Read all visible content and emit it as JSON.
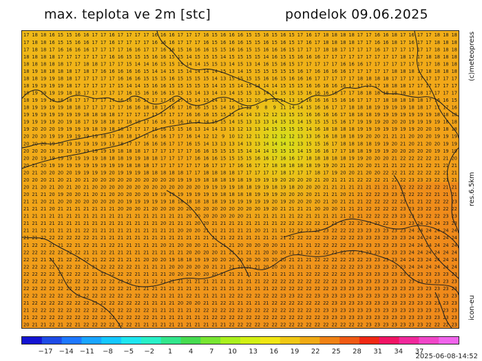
{
  "title": {
    "left": "max. teplota ve 2m [stc]",
    "right": "pondelok 09.06.2025"
  },
  "side_labels": {
    "top": "(c)meteopress",
    "middle": "res.6.5km",
    "bottom": "icon-eu"
  },
  "timestamp": "2025-06-08-14:52",
  "colorbar": {
    "tick_labels": [
      "−17",
      "−14",
      "−11",
      "−8",
      "−5",
      "−2",
      "1",
      "4",
      "7",
      "10",
      "13",
      "16",
      "19",
      "22",
      "25",
      "28",
      "31",
      "34",
      "37"
    ],
    "colors": [
      "#1414d2",
      "#1e4be6",
      "#1e78ff",
      "#19a5ff",
      "#14c8ff",
      "#1ee6f0",
      "#28f0c8",
      "#32e68c",
      "#46dc50",
      "#78e632",
      "#aaf01e",
      "#d2f014",
      "#f0e614",
      "#f0c814",
      "#f0aa14",
      "#f08214",
      "#f05a14",
      "#f02814",
      "#f01464",
      "#f0289b",
      "#f046c8",
      "#f064eb"
    ]
  },
  "map_grid": {
    "rows": [
      "17 18 18 16 15 15 16 16 17 17 16 17 17 17 17 16 16 16 17 17 17 16 15 16 16 16 15 15 16 15 16 15 17 16 17 18 18 18 18 17 17 16 16 18 17 16 17 17 18 18 18",
      "17 18 18 16 15 15 16 16 17 17 16 17 17 17 17 16 16 16 17 17 17 16 15 16 16 16 15 15 16 15 16 15 17 16 17 18 18 18 18 17 17 16 16 18 17 16 17 17 18 18 18",
      "17 18 18 17 16 16 16 16 17 17 17 17 16 16 17 17 16 16 15 16 16 16 15 15 16 16 15 15 16 16 16 15 17 17 17 18 18 17 17 17 17 16 17 17 17 17 17 17 18 18 18",
      "18 18 18 18 17 17 17 17 17 17 16 16 15 15 15 16 16 15 15 14 15 15 15 14 15 15 15 15 14 16 15 15 16 16 16 17 17 17 17 17 17 17 17 17 18 17 17 18 18 18 18",
      "18 18 18 18 18 17 17 18 18 17 17 17 15 14 14 16 15 15 15 14 14 15 15 13 14 15 13 14 16 15 16 15 17 17 17 17 17 16 16 16 17 17 17 17 17 17 17 17 18 18 18",
      "18 19 18 18 18 18 17 18 17 16 16 16 16 16 15 14 14 15 15 14 14 14 14 15 13 14 15 15 15 15 15 15 16 17 16 16 16 16 17 17 17 17 17 18 18 18 17 18 18 18 18",
      "18 18 19 19 18 18 17 17 17 17 17 16 16 16 15 15 15 16 15 15 15 15 14 13 15 15 15 15 16 16 15 16 16 16 17 17 17 17 17 18 18 18 18 17 17 17 17 17 17 17 17",
      "18 19 19 19 19 18 17 17 17 17 17 15 14 14 15 16 16 15 15 15 15 15 14 15 15 14 15 14 14 14 15 15 15 16 16 16 16 16 17 17 17 17 18 18 18 17 17 17 17 17 17",
      "18 19 19 19 19 18 18 17 17 17 17 17 16 15 16 16 16 15 15 15 14 13 14 13 14 15 15 13 14 14 15 15 15 16 16 16 16 17 17 18 18 18 18 18 18 18 18 17 17 17 17",
      "18 19 19 19 18 18 17 17 17 17 17 16 16 16 17 17 17 16 17 15 14 15 14 13 15 15 12 10 9 10 11 13 15 16 16 16 15 16 16 17 17 17 18 18 18 18 18 17 16 16 15",
      "18 19 19 19 19 18 18 17 17 17 17 17 16 16 18 18 17 16 17 16 16 15 15 14 16 15 13 9 8 9 11 14 14 15 16 16 17 17 18 18 18 19 19 19 19 18 18 17 17 17 16",
      "19 19 19 19 19 19 19 18 18 18 18 17 17 17 17 17 17 17 17 16 16 16 15 15 15 14 14 13 12 12 13 15 15 16 16 16 16 17 18 18 18 19 19 19 19 19 19 19 18 18 18",
      "19 19 19 19 20 19 18 17 19 18 18 17 18 18 17 16 16 15 16 16 14 14 15 15 14 15 13 13 13 14 15 15 14 15 15 15 15 16 17 19 19 19 20 20 20 19 19 19 19 18 18",
      "19 20 20 20 19 19 19 19 18 19 18 18 17 17 17 16 16 15 15 16 13 14 14 13 13 12 13 13 14 15 15 15 15 14 16 18 18 18 18 19 19 19 19 19 19 19 20 20 19 18 18",
      "20 20 20 19 19 19 19 19 19 18 17 18 18 17 17 16 16 17 17 16 14 12 12 9 10 12 12 11 12 12 12 12 13 13 16 16 18 18 18 19 20 20 21 21 21 20 20 20 19 19 19",
      "20 20 20 19 19 19 19 19 19 19 19 18 17 17 16 16 16 17 17 16 15 14 13 13 13 14 13 13 14 14 14 12 13 15 15 16 17 18 18 18 18 19 19 20 21 20 21 20 20 19 19",
      "20 20 20 19 19 19 19 19 19 19 19 18 18 18 17 17 17 17 17 17 16 16 15 15 15 15 14 14 14 15 15 15 14 15 16 16 17 17 18 18 19 19 19 20 20 20 20 20 19 19 19",
      "20 20 19 19 19 19 19 19 19 18 18 18 19 19 18 18 17 17 17 17 16 16 16 15 15 15 15 16 16 17 16 16 17 18 18 18 18 18 19 19 20 20 20 21 22 22 22 22 21 21 20",
      "20 21 20 19 19 19 19 19 19 19 19 19 18 18 18 17 17 17 17 17 17 16 17 17 17 16 16 17 17 18 18 18 18 18 19 19 20 21 21 20 20 21 21 21 22 21 21 22 21 21 21",
      "20 21 20 20 20 20 19 19 19 19 20 19 19 19 18 18 18 18 18 17 17 18 18 18 18 17 17 17 17 17 18 17 17 17 18 17 19 20 20 21 20 20 22 22 21 22 22 22 22 21 21",
      "20 20 20 21 20 21 20 21 20 20 20 20 20 20 20 20 20 20 19 19 19 18 18 18 19 18 19 19 19 19 20 20 20 20 21 20 21 21 21 22 22 22 21 22 22 23 23 23 22 21 21",
      "20 21 20 21 20 21 20 21 20 20 20 20 20 20 20 20 20 20 20 20 20 19 19 19 19 18 18 19 19 18 19 18 20 20 20 21 21 21 21 21 21 21 21 21 22 22 22 22 22 21 21",
      "20 21 21 20 19 20 20 21 20 21 20 20 20 20 20 19 19 19 19 19 19 19 19 18 18 18 18 19 19 19 20 20 20 20 21 21 21 20 21 21 22 22 23 23 22 22 22 22 21 21 21",
      "21 21 20 21 20 20 20 20 20 20 20 20 19 19 19 19 19 18 18 18 18 18 18 19 19 19 19 19 19 20 19 20 20 20 20 21 20 21 21 21 22 22 22 22 22 21 21 22 22 22 23",
      "21 21 21 20 21 21 21 21 21 21 21 20 20 20 21 20 20 20 20 20 20 20 20 20 20 20 20 20 19 20 21 21 21 21 20 20 20 21 21 21 22 22 22 22 23 23 23 22 23 22 22",
      "21 21 21 21 21 21 21 21 21 21 21 21 21 21 21 21 21 21 21 20 20 20 20 20 20 20 21 21 21 21 21 21 22 21 21 21 21 21 21 21 22 22 22 23 23 23 23 22 22 23 23",
      "21 21 21 21 21 21 21 21 21 21 21 21 21 21 21 21 20 21 21 21 20 20 21 21 21 21 21 21 21 21 22 22 22 22 22 21 21 22 22 22 22 22 22 22 23 23 24 24 24 23 23",
      "21 21 22 21 21 21 21 22 21 21 21 21 21 21 21 21 21 21 20 20 20 21 21 21 21 21 21 20 21 21 21 22 22 22 22 23 22 22 22 23 23 23 23 23 23 24 24 24 24 24 24",
      "21 21 22 22 22 22 22 22 21 21 21 21 21 21 21 21 21 21 21 21 21 21 21 21 22 21 21 21 21 21 21 22 22 22 22 23 22 22 22 23 23 23 23 23 23 24 24 24 24 24 24",
      "21 22 22 21 21 22 21 22 21 21 22 21 21 21 21 21 20 21 20 20 20 21 21 21 21 20 20 20 20 20 21 21 21 21 22 22 22 22 23 23 23 23 23 23 23 24 24 24 24 24 24",
      "22 22 22 22 22 22 22 21 21 22 21 21 21 21 21 21 21 21 21 20 20 20 20 21 21 21 21 21 20 20 20 21 21 22 22 22 22 22 22 23 23 23 23 23 23 24 24 24 24 24 24",
      "22 22 21 21 21 22 22 22 21 22 22 21 21 21 20 20 20 19 18 18 19 19 20 20 20 20 20 20 20 20 20 21 21 21 22 22 22 22 23 22 23 23 23 23 24 24 23 24 24 24 24",
      "22 22 22 22 22 22 22 21 21 22 22 22 22 21 21 21 21 20 20 20 20 20 21 21 21 21 21 21 20 20 20 21 21 21 22 22 22 22 22 23 23 23 23 23 23 24 24 24 24 24 24",
      "22 22 22 22 22 22 22 22 21 22 22 22 22 21 21 21 21 20 20 20 20 20 20 21 21 21 21 21 21 21 21 21 21 22 22 22 22 22 23 23 23 23 23 23 23 23 23 23 23 23 23",
      "22 22 22 22 22 22 22 22 21 22 22 22 22 21 21 22 21 21 21 21 21 21 21 21 21 21 21 21 22 22 22 22 22 22 22 22 22 23 23 23 23 23 23 23 23 23 23 23 23 23 23",
      "22 22 22 22 22 22 22 22 22 22 22 22 21 21 21 21 21 21 21 21 21 21 21 21 21 21 21 21 21 22 22 22 22 22 22 22 23 23 23 23 23 23 23 23 23 23 23 23 23 23 23",
      "22 22 22 22 22 22 22 22 22 22 22 22 22 22 22 22 21 21 21 22 21 21 21 21 22 22 22 22 22 22 23 23 22 22 23 23 23 23 23 23 23 23 23 23 23 23 23 23 23 23 23",
      "21 22 22 22 22 22 22 22 21 22 22 22 22 22 21 21 21 21 20 20 20 21 21 22 21 21 21 21 21 22 22 22 22 22 22 22 23 23 23 23 23 23 23 23 23 23 23 23 23 23 23",
      "21 22 22 22 22 22 22 22 22 22 22 22 22 22 22 21 21 21 21 21 22 22 22 22 22 22 22 22 22 22 22 22 22 22 22 23 23 23 23 23 23 23 23 23 23 23 23 23 23 23 23",
      "21 22 22 22 22 22 22 22 22 22 22 22 22 22 22 21 21 21 21 21 21 21 22 22 22 22 22 22 22 22 22 22 22 22 22 23 23 23 23 23 23 23 23 23 23 23 23 23 23 23 23",
      "20 21 21 22 21 22 21 22 22 22 22 22 22 21 21 21 21 21 21 21 21 21 21 21 22 22 22 22 22 22 22 22 22 22 22 22 22 22 22 22 23 23 23 23 23 23 23 22 22 22 23"
    ]
  }
}
